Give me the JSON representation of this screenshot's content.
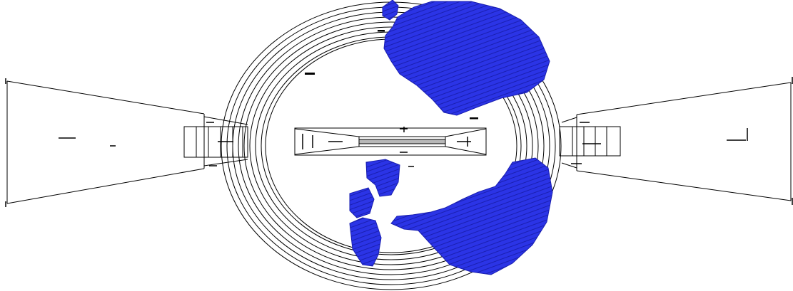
{
  "drawing": {
    "track_lane_count": 8,
    "colors": {
      "background": "#ffffff",
      "linework": "#000000",
      "fill": "#2b34e6",
      "fill_edge": "#1a1fb0"
    },
    "icons": [
      "left-projection-icon",
      "right-projection-icon",
      "oval-track-icon",
      "center-field-frame-icon",
      "blue-fill-region-icon"
    ]
  }
}
